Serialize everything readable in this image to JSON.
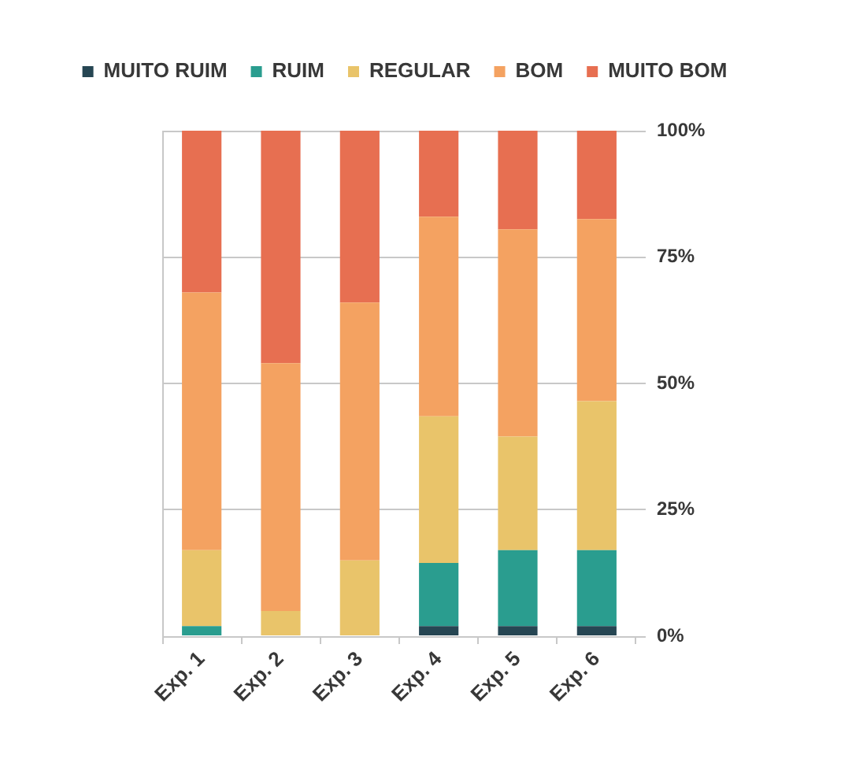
{
  "chart_data": {
    "type": "bar",
    "stacked": true,
    "categories": [
      "Exp. 1",
      "Exp. 2",
      "Exp. 3",
      "Exp. 4",
      "Exp. 5",
      "Exp. 6"
    ],
    "series": [
      {
        "name": "MUITO RUIM",
        "color": "#264653",
        "values": [
          0,
          0,
          0,
          2,
          2,
          2
        ]
      },
      {
        "name": "RUIM",
        "color": "#2a9d8f",
        "values": [
          2,
          0,
          0,
          12.5,
          15,
          15
        ]
      },
      {
        "name": "REGULAR",
        "color": "#e9c46a",
        "values": [
          15,
          5,
          15,
          29,
          22.5,
          29.5
        ]
      },
      {
        "name": "BOM",
        "color": "#f4a261",
        "values": [
          51,
          49,
          51,
          39.5,
          41,
          36
        ]
      },
      {
        "name": "MUITO BOM",
        "color": "#e76f51",
        "values": [
          32,
          46,
          34,
          17,
          19.5,
          17.5
        ]
      }
    ],
    "ylim": [
      0,
      100
    ],
    "yticks": [
      {
        "value": 0,
        "label": "0%"
      },
      {
        "value": 25,
        "label": "25%"
      },
      {
        "value": 50,
        "label": "50%"
      },
      {
        "value": 75,
        "label": "75%"
      },
      {
        "value": 100,
        "label": "100%"
      }
    ],
    "grid": "y",
    "legend": "top"
  }
}
